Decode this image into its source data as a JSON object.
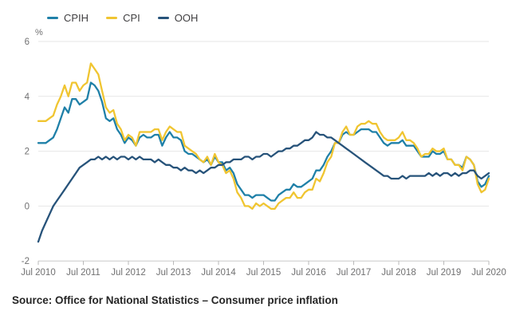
{
  "chart_data": {
    "type": "line",
    "title": "",
    "y_axis_unit": "%",
    "ylim": [
      -2,
      6
    ],
    "y_ticks": [
      6,
      4,
      2,
      0,
      -2
    ],
    "x_frequency": "monthly",
    "x_start": "Jul 2010",
    "x_end": "Jul 2020",
    "x_tick_labels": [
      "Jul 2010",
      "Jul 2011",
      "Jul 2012",
      "Jul 2013",
      "Jul 2014",
      "Jul 2015",
      "Jul 2016",
      "Jul 2017",
      "Jul 2018",
      "Jul 2019",
      "Jul 2020"
    ],
    "grid": "horizontal",
    "legend_position": "top-left",
    "series": [
      {
        "name": "CPIH",
        "color": "#1f80a8",
        "values": [
          2.3,
          2.3,
          2.3,
          2.4,
          2.5,
          2.8,
          3.2,
          3.6,
          3.4,
          3.9,
          3.9,
          3.7,
          3.8,
          3.9,
          4.5,
          4.4,
          4.2,
          3.8,
          3.2,
          3.1,
          3.2,
          2.8,
          2.6,
          2.3,
          2.5,
          2.4,
          2.2,
          2.5,
          2.6,
          2.5,
          2.5,
          2.6,
          2.6,
          2.2,
          2.5,
          2.7,
          2.5,
          2.5,
          2.4,
          2.0,
          1.9,
          1.9,
          1.8,
          1.7,
          1.6,
          1.7,
          1.5,
          1.8,
          1.6,
          1.6,
          1.3,
          1.4,
          1.2,
          0.8,
          0.6,
          0.4,
          0.4,
          0.3,
          0.4,
          0.4,
          0.4,
          0.3,
          0.2,
          0.2,
          0.4,
          0.5,
          0.6,
          0.6,
          0.8,
          0.7,
          0.7,
          0.8,
          0.9,
          1.0,
          1.3,
          1.3,
          1.5,
          1.8,
          2.0,
          2.3,
          2.3,
          2.6,
          2.7,
          2.6,
          2.6,
          2.7,
          2.8,
          2.8,
          2.8,
          2.7,
          2.7,
          2.5,
          2.3,
          2.2,
          2.3,
          2.3,
          2.3,
          2.4,
          2.2,
          2.2,
          2.2,
          2.0,
          1.8,
          1.8,
          1.8,
          2.0,
          1.9,
          1.9,
          2.0,
          1.7,
          1.7,
          1.5,
          1.5,
          1.4,
          1.8,
          1.7,
          1.5,
          0.9,
          0.7,
          0.8,
          1.1
        ]
      },
      {
        "name": "CPI",
        "color": "#f0c531",
        "values": [
          3.1,
          3.1,
          3.1,
          3.2,
          3.3,
          3.7,
          4.0,
          4.4,
          4.0,
          4.5,
          4.5,
          4.2,
          4.4,
          4.5,
          5.2,
          5.0,
          4.8,
          4.2,
          3.6,
          3.4,
          3.5,
          3.0,
          2.8,
          2.4,
          2.6,
          2.5,
          2.2,
          2.7,
          2.7,
          2.7,
          2.7,
          2.8,
          2.8,
          2.4,
          2.7,
          2.9,
          2.8,
          2.7,
          2.7,
          2.2,
          2.1,
          2.0,
          1.9,
          1.7,
          1.6,
          1.8,
          1.5,
          1.9,
          1.6,
          1.5,
          1.2,
          1.3,
          1.0,
          0.5,
          0.3,
          0.0,
          0.0,
          -0.1,
          0.1,
          0.0,
          0.1,
          0.0,
          -0.1,
          -0.1,
          0.1,
          0.2,
          0.3,
          0.3,
          0.5,
          0.3,
          0.3,
          0.5,
          0.6,
          0.6,
          1.0,
          0.9,
          1.2,
          1.6,
          1.8,
          2.3,
          2.3,
          2.7,
          2.9,
          2.6,
          2.6,
          2.9,
          3.0,
          3.0,
          3.1,
          3.0,
          3.0,
          2.7,
          2.5,
          2.4,
          2.4,
          2.4,
          2.5,
          2.7,
          2.4,
          2.4,
          2.3,
          2.1,
          1.8,
          1.9,
          1.9,
          2.1,
          2.0,
          2.0,
          2.1,
          1.7,
          1.7,
          1.5,
          1.5,
          1.3,
          1.8,
          1.7,
          1.5,
          0.8,
          0.5,
          0.6,
          1.0
        ]
      },
      {
        "name": "OOH",
        "color": "#27537a",
        "values": [
          -1.3,
          -0.9,
          -0.6,
          -0.3,
          0.0,
          0.2,
          0.4,
          0.6,
          0.8,
          1.0,
          1.2,
          1.4,
          1.5,
          1.6,
          1.7,
          1.7,
          1.8,
          1.7,
          1.8,
          1.7,
          1.8,
          1.7,
          1.8,
          1.8,
          1.7,
          1.8,
          1.7,
          1.8,
          1.7,
          1.7,
          1.7,
          1.6,
          1.7,
          1.6,
          1.5,
          1.5,
          1.4,
          1.4,
          1.3,
          1.4,
          1.3,
          1.3,
          1.2,
          1.3,
          1.2,
          1.3,
          1.4,
          1.4,
          1.5,
          1.5,
          1.6,
          1.6,
          1.7,
          1.7,
          1.7,
          1.8,
          1.8,
          1.7,
          1.8,
          1.8,
          1.9,
          1.9,
          1.8,
          1.9,
          2.0,
          2.0,
          2.1,
          2.1,
          2.2,
          2.2,
          2.3,
          2.4,
          2.4,
          2.5,
          2.7,
          2.6,
          2.6,
          2.5,
          2.5,
          2.4,
          2.3,
          2.2,
          2.1,
          2.0,
          1.9,
          1.8,
          1.7,
          1.6,
          1.5,
          1.4,
          1.3,
          1.2,
          1.1,
          1.1,
          1.0,
          1.0,
          1.0,
          1.1,
          1.0,
          1.1,
          1.1,
          1.1,
          1.1,
          1.1,
          1.2,
          1.1,
          1.2,
          1.1,
          1.2,
          1.2,
          1.1,
          1.2,
          1.1,
          1.2,
          1.2,
          1.3,
          1.3,
          1.1,
          1.0,
          1.1,
          1.2
        ]
      }
    ]
  },
  "colors": {
    "gridline": "#e6e6e6",
    "axis_line": "#c9c9c9",
    "tick": "#b9b9b9",
    "axis_text": "#707071",
    "legend_text": "#414042",
    "source_text": "#262626"
  },
  "source": {
    "text": "Source: Office for National Statistics – Consumer price inflation"
  }
}
